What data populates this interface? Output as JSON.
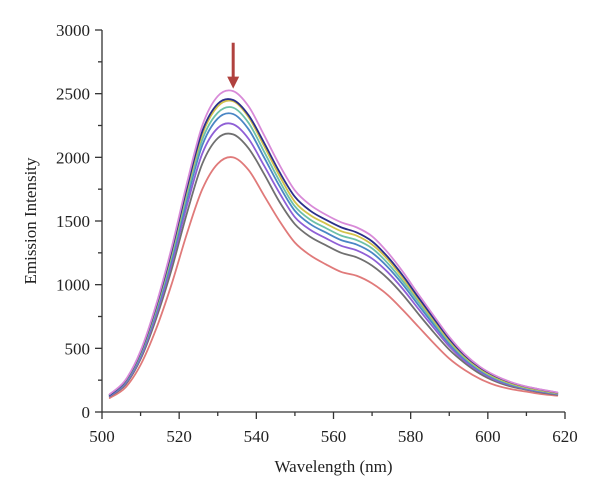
{
  "chart_data": {
    "type": "line",
    "title": "",
    "xlabel": "Wavelength (nm)",
    "ylabel": "Emission Intensity",
    "xlim": [
      500,
      620
    ],
    "ylim": [
      0,
      3000
    ],
    "xticks": [
      500,
      520,
      540,
      560,
      580,
      600,
      620
    ],
    "yticks": [
      0,
      500,
      1000,
      1500,
      2000,
      2500,
      3000
    ],
    "grid": false,
    "legend": "none",
    "annotation": {
      "type": "arrow-down",
      "x": 534,
      "y_top": 2900,
      "y_bottom": 2540,
      "color": "#b0413e"
    },
    "x": [
      502,
      506,
      510,
      514,
      518,
      522,
      526,
      530,
      534,
      538,
      542,
      546,
      550,
      554,
      558,
      562,
      566,
      570,
      574,
      578,
      582,
      586,
      590,
      594,
      598,
      602,
      606,
      610,
      614,
      618
    ],
    "series": [
      {
        "color": "#e07a7a",
        "values": [
          110,
          190,
          370,
          650,
          1000,
          1400,
          1750,
          1950,
          2000,
          1900,
          1700,
          1500,
          1330,
          1230,
          1160,
          1100,
          1070,
          1010,
          920,
          800,
          670,
          540,
          420,
          330,
          260,
          210,
          180,
          160,
          140,
          128
        ]
      },
      {
        "color": "#707070",
        "values": [
          122,
          212,
          415,
          730,
          1115,
          1560,
          1950,
          2150,
          2180,
          2070,
          1870,
          1650,
          1475,
          1375,
          1310,
          1250,
          1215,
          1150,
          1050,
          920,
          770,
          625,
          490,
          385,
          300,
          240,
          200,
          175,
          152,
          135
        ]
      },
      {
        "color": "#8f5fd6",
        "values": [
          126,
          222,
          430,
          760,
          1160,
          1620,
          2030,
          2230,
          2260,
          2145,
          1935,
          1720,
          1530,
          1430,
          1365,
          1305,
          1270,
          1205,
          1100,
          965,
          810,
          660,
          515,
          400,
          315,
          250,
          210,
          180,
          158,
          140
        ]
      },
      {
        "color": "#4a86c5",
        "values": [
          130,
          230,
          445,
          785,
          1195,
          1670,
          2095,
          2305,
          2340,
          2220,
          2000,
          1775,
          1580,
          1475,
          1410,
          1350,
          1315,
          1250,
          1140,
          1000,
          840,
          685,
          535,
          415,
          325,
          260,
          215,
          185,
          162,
          143
        ]
      },
      {
        "color": "#6cc0a8",
        "values": [
          134,
          236,
          455,
          800,
          1220,
          1705,
          2140,
          2350,
          2390,
          2270,
          2045,
          1815,
          1615,
          1510,
          1445,
          1385,
          1350,
          1285,
          1170,
          1025,
          865,
          705,
          550,
          425,
          332,
          265,
          220,
          188,
          165,
          145
        ]
      },
      {
        "color": "#d3c24a",
        "values": [
          137,
          240,
          465,
          815,
          1245,
          1740,
          2180,
          2400,
          2440,
          2315,
          2090,
          1855,
          1650,
          1545,
          1480,
          1420,
          1385,
          1315,
          1200,
          1050,
          885,
          720,
          562,
          435,
          340,
          272,
          225,
          192,
          168,
          148
        ]
      },
      {
        "color": "#2b2f8a",
        "values": [
          135,
          242,
          470,
          825,
          1260,
          1760,
          2205,
          2420,
          2450,
          2330,
          2115,
          1885,
          1690,
          1580,
          1510,
          1450,
          1410,
          1340,
          1220,
          1070,
          900,
          735,
          575,
          445,
          348,
          280,
          232,
          198,
          174,
          152
        ]
      },
      {
        "color": "#d88ad8",
        "values": [
          140,
          248,
          480,
          840,
          1285,
          1795,
          2250,
          2480,
          2520,
          2400,
          2175,
          1940,
          1740,
          1625,
          1550,
          1490,
          1450,
          1380,
          1255,
          1100,
          925,
          755,
          590,
          455,
          355,
          285,
          235,
          200,
          176,
          154
        ]
      }
    ]
  }
}
